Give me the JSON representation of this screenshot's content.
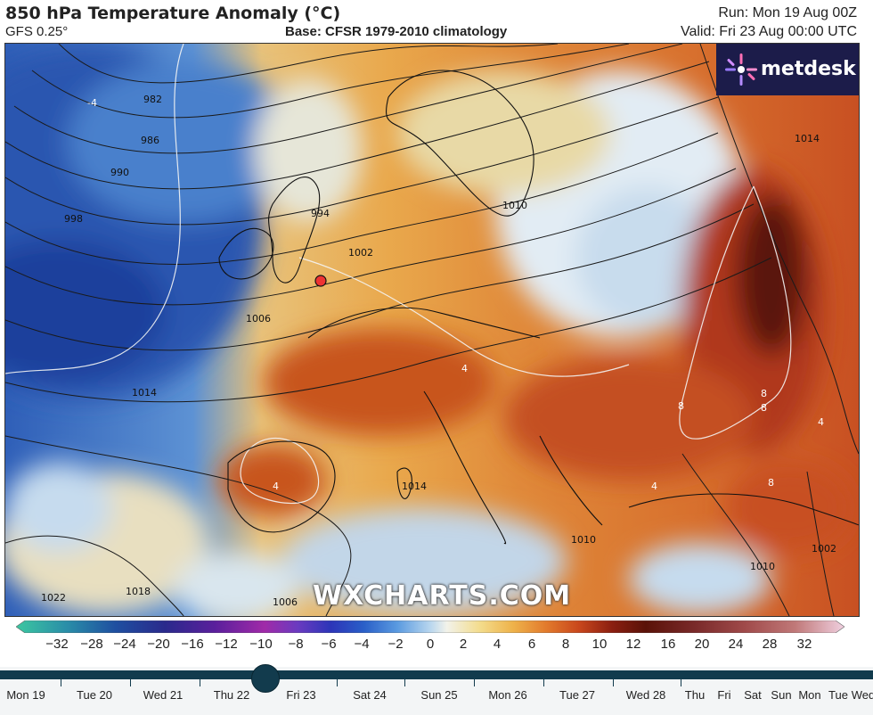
{
  "header": {
    "title": "850 hPa Temperature Anomaly (°C)",
    "model": "GFS 0.25°",
    "base": "Base: CFSR 1979-2010 climatology",
    "run": "Run: Mon 19 Aug 00Z",
    "valid": "Valid: Fri 23 Aug 00:00 UTC"
  },
  "logo": {
    "text": "metdesk",
    "icon": "metdesk-logo-icon"
  },
  "watermark": "WXCHARTS.COM",
  "map": {
    "isobar_labels": [
      "982",
      "986",
      "990",
      "994",
      "998",
      "1002",
      "1006",
      "1010",
      "1014",
      "1018",
      "1022",
      "1014",
      "1010",
      "1006",
      "1002",
      "1014",
      "1010"
    ],
    "anomaly_labels": [
      "-4",
      "4",
      "4",
      "4",
      "8",
      "8",
      "8",
      "8",
      "4"
    ]
  },
  "colorbar": {
    "ticks": [
      "−32",
      "−28",
      "−24",
      "−20",
      "−16",
      "−12",
      "−10",
      "−8",
      "−6",
      "−4",
      "−2",
      "0",
      "2",
      "4",
      "6",
      "8",
      "10",
      "12",
      "16",
      "20",
      "24",
      "28",
      "32"
    ],
    "colors": [
      "#3cc7a0",
      "#2a8fa8",
      "#1f4fa0",
      "#2a2a8c",
      "#5a1f9c",
      "#a02aa8",
      "#6a3bc0",
      "#2c35b8",
      "#2a5fc8",
      "#5a9ae0",
      "#b8d6ee",
      "#f2f2ea",
      "#f3dc8c",
      "#eeb24a",
      "#e27a2c",
      "#c8461c",
      "#8a1e10",
      "#5a1208",
      "#7a2a2a",
      "#a04a4a",
      "#c07878",
      "#dca8b8",
      "#f0d0e0"
    ]
  },
  "timeline": {
    "days": [
      "Mon 19",
      "Tue 20",
      "Wed 21",
      "Thu 22",
      "Fri 23",
      "Sat 24",
      "Sun 25",
      "Mon 26",
      "Tue 27",
      "Wed 28",
      "Thu",
      "Fri",
      "Sat",
      "Sun",
      "Mon",
      "Tue",
      "Wed"
    ],
    "selected": "Fri 23"
  }
}
